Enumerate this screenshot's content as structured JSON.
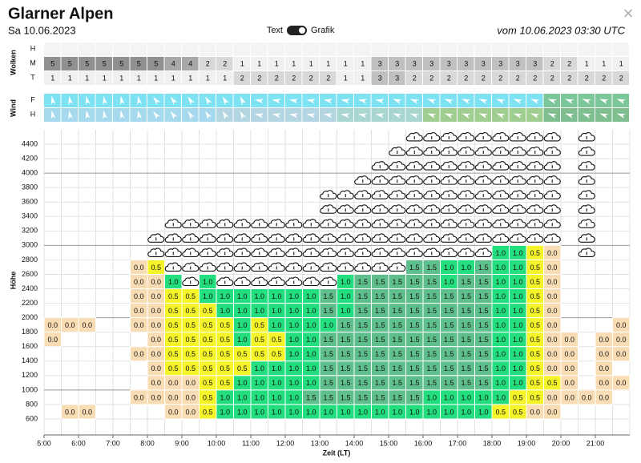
{
  "header": {
    "title": "Glarner Alpen",
    "date": "Sa 10.06.2023",
    "toggle_left": "Text",
    "toggle_right": "Grafik",
    "run": "vom 10.06.2023 03:30 UTC",
    "close": "×"
  },
  "clouds": {
    "label": "Wolken",
    "rows": [
      {
        "name": "H",
        "values": [
          null,
          null,
          null,
          null,
          null,
          null,
          null,
          null,
          null,
          null,
          null,
          null,
          null,
          null,
          null,
          null,
          null,
          null,
          null,
          null,
          null,
          null,
          null,
          null,
          null,
          null,
          null,
          null,
          null,
          null,
          null,
          null,
          null,
          null
        ]
      },
      {
        "name": "M",
        "values": [
          5,
          5,
          5,
          5,
          5,
          5,
          5,
          4,
          4,
          2,
          2,
          1,
          1,
          1,
          1,
          1,
          1,
          1,
          1,
          3,
          3,
          3,
          3,
          3,
          3,
          3,
          3,
          3,
          3,
          2,
          2,
          1,
          1,
          1
        ]
      },
      {
        "name": "T",
        "values": [
          1,
          1,
          1,
          1,
          1,
          1,
          1,
          1,
          1,
          1,
          1,
          2,
          2,
          2,
          2,
          2,
          2,
          1,
          1,
          3,
          3,
          2,
          2,
          2,
          2,
          2,
          2,
          2,
          2,
          2,
          2,
          2,
          2,
          2
        ]
      }
    ]
  },
  "wind": {
    "label": "Wind",
    "rows": [
      {
        "name": "F"
      },
      {
        "name": "H"
      }
    ]
  },
  "thermik": {
    "y_label": "Höhe",
    "x_label": "Zeit (LT)",
    "yticks": [
      600,
      800,
      1000,
      1200,
      1400,
      1600,
      1800,
      2000,
      2200,
      2400,
      2600,
      2800,
      3000,
      3200,
      3400,
      3600,
      3800,
      4000,
      4200,
      4400
    ],
    "xticks": [
      "5:00",
      "6:00",
      "7:00",
      "8:00",
      "9:00",
      "10:00",
      "11:00",
      "12:00",
      "13:00",
      "14:00",
      "15:00",
      "16:00",
      "17:00",
      "18:00",
      "19:00",
      "20:00",
      "21:00"
    ],
    "colors": {
      "0.0": "#f8dcb3",
      "0.5": "#f4f429",
      "1.0": "#22de7e",
      "1.5": "#5fbf8c"
    },
    "rows": [
      [
        null,
        null,
        null,
        null,
        null,
        null,
        null,
        null,
        null,
        null,
        null,
        null,
        null,
        null,
        null,
        null,
        null,
        null,
        null,
        null,
        null,
        null,
        null,
        null,
        null,
        null,
        null,
        null,
        null,
        null,
        null,
        null,
        null,
        null
      ],
      [
        null,
        null,
        null,
        null,
        null,
        null,
        null,
        null,
        null,
        null,
        null,
        null,
        null,
        null,
        null,
        null,
        null,
        null,
        null,
        null,
        null,
        null,
        null,
        null,
        null,
        null,
        null,
        null,
        null,
        null,
        null,
        null,
        null,
        null
      ],
      [
        null,
        null,
        null,
        null,
        null,
        null,
        null,
        null,
        null,
        null,
        null,
        null,
        null,
        null,
        null,
        null,
        null,
        null,
        null,
        null,
        null,
        null,
        null,
        null,
        null,
        null,
        null,
        null,
        null,
        null,
        null,
        null,
        null,
        null
      ],
      [
        null,
        null,
        null,
        null,
        null,
        null,
        null,
        null,
        null,
        null,
        null,
        null,
        null,
        null,
        null,
        null,
        null,
        null,
        null,
        null,
        null,
        null,
        null,
        null,
        null,
        null,
        null,
        null,
        null,
        null,
        null,
        null,
        null,
        null
      ],
      [
        null,
        null,
        null,
        null,
        null,
        null,
        null,
        null,
        null,
        null,
        null,
        null,
        null,
        null,
        null,
        null,
        null,
        null,
        null,
        null,
        null,
        null,
        null,
        null,
        null,
        null,
        null,
        null,
        null,
        null,
        null,
        null,
        null,
        null
      ],
      [
        null,
        null,
        null,
        null,
        null,
        null,
        null,
        null,
        null,
        null,
        null,
        null,
        null,
        null,
        null,
        null,
        null,
        null,
        null,
        null,
        null,
        null,
        null,
        null,
        null,
        null,
        null,
        null,
        null,
        null,
        null,
        null,
        null,
        null
      ],
      [
        null,
        null,
        null,
        null,
        null,
        null,
        null,
        null,
        null,
        null,
        null,
        null,
        null,
        null,
        null,
        null,
        null,
        null,
        null,
        null,
        null,
        null,
        null,
        null,
        null,
        null,
        null,
        null,
        null,
        null,
        null,
        null,
        null,
        null
      ],
      [
        null,
        null,
        null,
        null,
        null,
        null,
        null,
        null,
        null,
        null,
        null,
        null,
        null,
        null,
        null,
        null,
        null,
        null,
        null,
        null,
        null,
        null,
        null,
        null,
        null,
        null,
        null,
        null,
        null,
        null,
        null,
        null,
        null,
        null
      ],
      [
        null,
        null,
        null,
        null,
        null,
        null,
        null,
        null,
        null,
        null,
        null,
        null,
        null,
        null,
        null,
        null,
        null,
        null,
        null,
        null,
        null,
        null,
        null,
        null,
        null,
        null,
        "1.0",
        "1.0",
        "0.5",
        "0.0",
        null,
        null,
        null,
        null
      ],
      [
        null,
        null,
        null,
        null,
        null,
        "0.0",
        "0.5",
        null,
        null,
        null,
        null,
        null,
        null,
        null,
        null,
        null,
        null,
        null,
        null,
        null,
        null,
        "1.5",
        "1.5",
        "1.0",
        "1.0",
        "1.5",
        "1.0",
        "1.0",
        "0.5",
        "0.0",
        null,
        null,
        null,
        null
      ],
      [
        null,
        null,
        null,
        null,
        null,
        "0.0",
        "0.0",
        "1.0",
        null,
        "1.0",
        null,
        null,
        null,
        null,
        null,
        null,
        null,
        "1.0",
        "1.5",
        "1.5",
        "1.5",
        "1.5",
        "1.5",
        "1.0",
        "1.5",
        "1.5",
        "1.0",
        "1.0",
        "0.5",
        "0.0",
        null,
        null,
        null,
        null
      ],
      [
        null,
        null,
        null,
        null,
        null,
        "0.0",
        "0.0",
        "0.5",
        "0.5",
        "1.0",
        "1.0",
        "1.0",
        "1.0",
        "1.0",
        "1.0",
        "1.0",
        "1.5",
        "1.0",
        "1.5",
        "1.5",
        "1.5",
        "1.5",
        "1.5",
        "1.5",
        "1.5",
        "1.5",
        "1.0",
        "1.0",
        "0.5",
        "0.0",
        null,
        null,
        null,
        null
      ],
      [
        null,
        null,
        null,
        null,
        null,
        "0.0",
        "0.0",
        "0.5",
        "0.5",
        "0.5",
        "1.0",
        "1.0",
        "1.0",
        "1.0",
        "1.0",
        "1.0",
        "1.5",
        "1.0",
        "1.5",
        "1.5",
        "1.5",
        "1.5",
        "1.5",
        "1.5",
        "1.5",
        "1.5",
        "1.0",
        "1.0",
        "0.5",
        "0.0",
        null,
        null,
        null,
        null
      ],
      [
        "0.0",
        "0.0",
        "0.0",
        null,
        null,
        "0.0",
        "0.0",
        "0.5",
        "0.5",
        "0.5",
        "0.5",
        "1.0",
        "0.5",
        "1.0",
        "1.0",
        "1.0",
        "1.0",
        "1.5",
        "1.5",
        "1.5",
        "1.5",
        "1.5",
        "1.5",
        "1.5",
        "1.5",
        "1.5",
        "1.0",
        "1.0",
        "0.5",
        "0.0",
        null,
        null,
        null,
        "0.0"
      ],
      [
        "0.0",
        null,
        null,
        null,
        null,
        null,
        "0.0",
        "0.5",
        "0.5",
        "0.5",
        "0.5",
        "1.0",
        "0.5",
        "0.5",
        "1.0",
        "1.0",
        "1.5",
        "1.5",
        "1.5",
        "1.5",
        "1.5",
        "1.5",
        "1.5",
        "1.5",
        "1.5",
        "1.5",
        "1.0",
        "1.0",
        "0.5",
        "0.0",
        "0.0",
        null,
        "0.0",
        "0.0"
      ],
      [
        null,
        null,
        null,
        null,
        null,
        "0.0",
        "0.0",
        "0.5",
        "0.5",
        "0.5",
        "0.5",
        "0.5",
        "0.5",
        "0.5",
        "1.0",
        "1.0",
        "1.5",
        "1.5",
        "1.5",
        "1.5",
        "1.5",
        "1.5",
        "1.5",
        "1.5",
        "1.5",
        "1.5",
        "1.0",
        "1.0",
        "0.5",
        "0.0",
        "0.0",
        null,
        "0.0",
        "0.0"
      ],
      [
        null,
        null,
        null,
        null,
        null,
        null,
        "0.0",
        "0.5",
        "0.5",
        "0.5",
        "0.5",
        "0.5",
        "1.0",
        "1.0",
        "1.0",
        "1.0",
        "1.5",
        "1.5",
        "1.5",
        "1.5",
        "1.5",
        "1.5",
        "1.5",
        "1.5",
        "1.5",
        "1.5",
        "1.0",
        "1.0",
        "0.5",
        "0.0",
        "0.0",
        null,
        "0.0",
        null
      ],
      [
        null,
        null,
        null,
        null,
        null,
        null,
        "0.0",
        "0.0",
        "0.0",
        "0.5",
        "0.5",
        "1.0",
        "1.0",
        "1.0",
        "1.0",
        "1.0",
        "1.5",
        "1.5",
        "1.5",
        "1.5",
        "1.5",
        "1.5",
        "1.5",
        "1.5",
        "1.5",
        "1.5",
        "1.0",
        "1.0",
        "0.5",
        "0.5",
        "0.0",
        null,
        "0.0",
        "0.0"
      ],
      [
        null,
        null,
        null,
        null,
        null,
        "0.0",
        "0.0",
        "0.0",
        "0.0",
        "0.5",
        "1.0",
        "1.0",
        "1.0",
        "1.0",
        "1.0",
        "1.5",
        "1.5",
        "1.5",
        "1.5",
        "1.5",
        "1.5",
        "1.5",
        "1.0",
        "1.0",
        "1.0",
        "1.0",
        "1.0",
        "0.5",
        "0.5",
        "0.0",
        "0.0",
        "0.0",
        "0.0",
        null
      ],
      [
        null,
        "0.0",
        "0.0",
        null,
        null,
        null,
        null,
        "0.0",
        "0.0",
        "0.5",
        "1.0",
        "1.0",
        "1.0",
        "1.0",
        "1.0",
        "1.0",
        "1.0",
        "1.0",
        "1.0",
        "1.0",
        "1.0",
        "1.0",
        "1.0",
        "1.0",
        "1.0",
        "1.0",
        "0.5",
        "0.5",
        "0.0",
        "0.0",
        null,
        null,
        null,
        null
      ]
    ],
    "cumulus": [
      null,
      null,
      null,
      null,
      null,
      null,
      [
        2800,
        3200
      ],
      [
        2600,
        3400
      ],
      [
        2400,
        3400
      ],
      [
        2600,
        3400
      ],
      [
        2400,
        3400
      ],
      [
        2400,
        3400
      ],
      [
        2400,
        3400
      ],
      [
        2400,
        3400
      ],
      [
        2400,
        3400
      ],
      [
        2400,
        3400
      ],
      [
        2400,
        3800
      ],
      [
        2600,
        3800
      ],
      [
        2600,
        4000
      ],
      [
        2600,
        4200
      ],
      [
        2600,
        4400
      ],
      [
        2800,
        4600
      ],
      [
        2800,
        4600
      ],
      [
        2800,
        4600
      ],
      [
        2800,
        4600
      ],
      [
        2800,
        4600
      ],
      [
        3000,
        4600
      ],
      [
        3000,
        4600
      ],
      [
        3000,
        4600
      ],
      [
        3000,
        4600
      ],
      null,
      [
        2800,
        4600
      ],
      null,
      null
    ]
  }
}
